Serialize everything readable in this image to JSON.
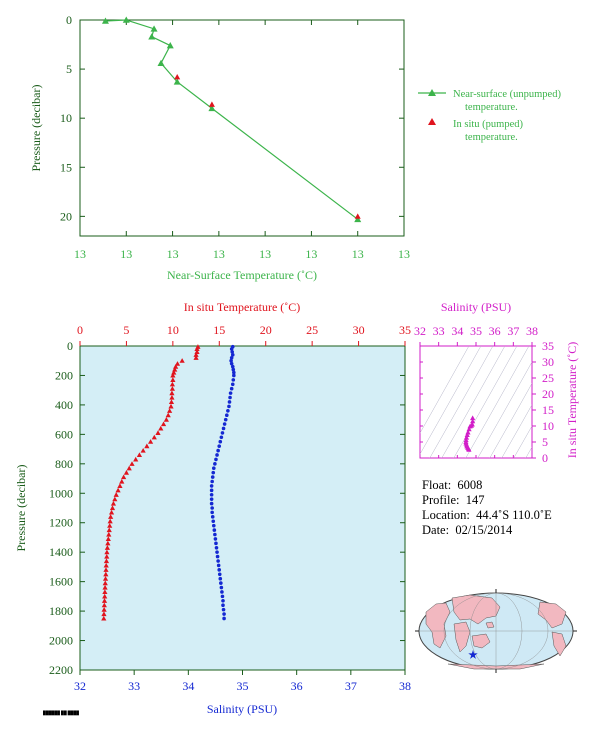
{
  "colors": {
    "green": "#3cb44b",
    "red": "#e0141e",
    "blue": "#1428d2",
    "magenta": "#d21ec8",
    "dark_green": "#1a5c1a",
    "plot_bg": "#d4eef6",
    "land": "#f2b8c0",
    "ocean": "#cfe9f5"
  },
  "chart_data": [
    {
      "type": "line",
      "xlabel": "Near-Surface Temperature (˚C)",
      "ylabel": "Pressure (decibar)",
      "x_tick_labels": [
        "13",
        "13",
        "13",
        "13",
        "13",
        "13",
        "13",
        "13"
      ],
      "y_ticks": [
        0,
        5,
        10,
        15,
        20
      ],
      "ylim": [
        0,
        22
      ],
      "y_inverted": true,
      "legend_position": "right",
      "series": [
        {
          "name": "Near-surface (unpumped) temperature.",
          "marker": "triangle",
          "color": "#3cb44b",
          "points": [
            {
              "x": 12.55,
              "y": 0.1
            },
            {
              "x": 13.0,
              "y": 0.0
            },
            {
              "x": 13.6,
              "y": 0.9
            },
            {
              "x": 13.55,
              "y": 1.7
            },
            {
              "x": 13.95,
              "y": 2.6
            },
            {
              "x": 13.75,
              "y": 4.4
            },
            {
              "x": 14.1,
              "y": 6.3
            },
            {
              "x": 14.85,
              "y": 9.0
            },
            {
              "x": 18.0,
              "y": 20.3
            }
          ]
        },
        {
          "name": "In situ (pumped) temperature.",
          "marker": "triangle",
          "color": "#e0141e",
          "points": [
            {
              "x": 14.1,
              "y": 5.8
            },
            {
              "x": 14.85,
              "y": 8.6
            },
            {
              "x": 18.0,
              "y": 20.0
            }
          ]
        }
      ]
    },
    {
      "type": "scatter",
      "xlabel_top": "In situ Temperature (˚C)",
      "xlabel_bottom": "Salinity (PSU)",
      "ylabel": "Pressure (decibar)",
      "x_top_ticks": [
        0,
        5,
        10,
        15,
        20,
        25,
        30,
        35
      ],
      "x_bottom_ticks": [
        32,
        33,
        34,
        35,
        36,
        37,
        38
      ],
      "y_ticks": [
        0,
        200,
        400,
        600,
        800,
        1000,
        1200,
        1400,
        1600,
        1800,
        2000,
        2200
      ],
      "ylim": [
        0,
        2200
      ],
      "y_inverted": true,
      "series": [
        {
          "name": "Temperature",
          "axis": "top",
          "color": "#e0141e",
          "marker": "triangle",
          "points": [
            [
              12.7,
              5
            ],
            [
              12.6,
              20
            ],
            [
              12.6,
              40
            ],
            [
              12.5,
              60
            ],
            [
              12.5,
              80
            ],
            [
              11.0,
              100
            ],
            [
              10.5,
              120
            ],
            [
              10.3,
              140
            ],
            [
              10.2,
              160
            ],
            [
              10.1,
              180
            ],
            [
              10.0,
              200
            ],
            [
              10.0,
              230
            ],
            [
              9.95,
              260
            ],
            [
              9.95,
              290
            ],
            [
              9.9,
              320
            ],
            [
              9.9,
              350
            ],
            [
              9.85,
              380
            ],
            [
              9.8,
              410
            ],
            [
              9.65,
              440
            ],
            [
              9.5,
              470
            ],
            [
              9.3,
              500
            ],
            [
              9.0,
              530
            ],
            [
              8.7,
              560
            ],
            [
              8.4,
              590
            ],
            [
              8.0,
              620
            ],
            [
              7.6,
              650
            ],
            [
              7.2,
              680
            ],
            [
              6.8,
              710
            ],
            [
              6.4,
              740
            ],
            [
              6.0,
              770
            ],
            [
              5.6,
              800
            ],
            [
              5.3,
              830
            ],
            [
              5.0,
              860
            ],
            [
              4.7,
              890
            ],
            [
              4.5,
              920
            ],
            [
              4.3,
              950
            ],
            [
              4.1,
              980
            ],
            [
              3.9,
              1010
            ],
            [
              3.75,
              1040
            ],
            [
              3.6,
              1070
            ],
            [
              3.5,
              1100
            ],
            [
              3.4,
              1130
            ],
            [
              3.3,
              1160
            ],
            [
              3.25,
              1190
            ],
            [
              3.2,
              1220
            ],
            [
              3.15,
              1250
            ],
            [
              3.1,
              1280
            ],
            [
              3.05,
              1310
            ],
            [
              3.0,
              1340
            ],
            [
              2.95,
              1370
            ],
            [
              2.9,
              1400
            ],
            [
              2.88,
              1430
            ],
            [
              2.85,
              1460
            ],
            [
              2.82,
              1490
            ],
            [
              2.8,
              1520
            ],
            [
              2.78,
              1550
            ],
            [
              2.75,
              1580
            ],
            [
              2.72,
              1610
            ],
            [
              2.7,
              1640
            ],
            [
              2.68,
              1670
            ],
            [
              2.66,
              1700
            ],
            [
              2.64,
              1730
            ],
            [
              2.62,
              1760
            ],
            [
              2.6,
              1790
            ],
            [
              2.58,
              1820
            ],
            [
              2.56,
              1850
            ]
          ]
        },
        {
          "name": "Salinity",
          "axis": "bottom",
          "color": "#1428d2",
          "marker": "circle",
          "points": [
            [
              34.82,
              5
            ],
            [
              34.8,
              20
            ],
            [
              34.81,
              40
            ],
            [
              34.82,
              60
            ],
            [
              34.8,
              80
            ],
            [
              34.79,
              100
            ],
            [
              34.8,
              120
            ],
            [
              34.82,
              140
            ],
            [
              34.83,
              160
            ],
            [
              34.84,
              180
            ],
            [
              34.84,
              200
            ],
            [
              34.83,
              230
            ],
            [
              34.82,
              260
            ],
            [
              34.8,
              290
            ],
            [
              34.78,
              320
            ],
            [
              34.77,
              350
            ],
            [
              34.76,
              380
            ],
            [
              34.75,
              410
            ],
            [
              34.73,
              440
            ],
            [
              34.71,
              470
            ],
            [
              34.69,
              500
            ],
            [
              34.67,
              530
            ],
            [
              34.65,
              560
            ],
            [
              34.63,
              590
            ],
            [
              34.61,
              620
            ],
            [
              34.59,
              650
            ],
            [
              34.57,
              680
            ],
            [
              34.55,
              710
            ],
            [
              34.53,
              740
            ],
            [
              34.51,
              770
            ],
            [
              34.49,
              800
            ],
            [
              34.47,
              830
            ],
            [
              34.46,
              860
            ],
            [
              34.45,
              890
            ],
            [
              34.44,
              920
            ],
            [
              34.43,
              950
            ],
            [
              34.43,
              980
            ],
            [
              34.43,
              1010
            ],
            [
              34.43,
              1040
            ],
            [
              34.43,
              1070
            ],
            [
              34.44,
              1100
            ],
            [
              34.44,
              1130
            ],
            [
              34.45,
              1160
            ],
            [
              34.46,
              1190
            ],
            [
              34.47,
              1220
            ],
            [
              34.48,
              1250
            ],
            [
              34.49,
              1280
            ],
            [
              34.5,
              1310
            ],
            [
              34.51,
              1340
            ],
            [
              34.52,
              1370
            ],
            [
              34.53,
              1400
            ],
            [
              34.54,
              1430
            ],
            [
              34.55,
              1460
            ],
            [
              34.56,
              1490
            ],
            [
              34.57,
              1520
            ],
            [
              34.58,
              1550
            ],
            [
              34.59,
              1580
            ],
            [
              34.6,
              1610
            ],
            [
              34.61,
              1640
            ],
            [
              34.62,
              1670
            ],
            [
              34.63,
              1700
            ],
            [
              34.64,
              1730
            ],
            [
              34.64,
              1760
            ],
            [
              34.65,
              1790
            ],
            [
              34.66,
              1820
            ],
            [
              34.66,
              1850
            ]
          ]
        }
      ]
    },
    {
      "type": "scatter",
      "xlabel": "Salinity (PSU)",
      "ylabel": "In situ Temperature (˚C)",
      "x_ticks": [
        32,
        33,
        34,
        35,
        36,
        37,
        38
      ],
      "y_ticks": [
        0,
        5,
        10,
        15,
        20,
        25,
        30,
        35
      ],
      "xlim": [
        32,
        38
      ],
      "ylim": [
        0,
        35
      ],
      "series": [
        {
          "name": "T-S",
          "color": "#d21ec8",
          "marker": "triangle",
          "points": [
            [
              34.62,
              2.6
            ],
            [
              34.6,
              2.9
            ],
            [
              34.56,
              3.2
            ],
            [
              34.52,
              3.6
            ],
            [
              34.5,
              4.0
            ],
            [
              34.47,
              4.5
            ],
            [
              34.46,
              5.0
            ],
            [
              34.47,
              5.6
            ],
            [
              34.49,
              6.4
            ],
            [
              34.53,
              7.2
            ],
            [
              34.57,
              8.0
            ],
            [
              34.63,
              9.0
            ],
            [
              34.68,
              9.9
            ],
            [
              34.75,
              10.1
            ],
            [
              34.8,
              10.5
            ],
            [
              34.82,
              11.5
            ],
            [
              34.82,
              12.5
            ]
          ]
        }
      ]
    }
  ],
  "legend": {
    "item1_line1": "Near-surface (unpumped)",
    "item1_line2": "temperature.",
    "item2_line1": "In situ (pumped)",
    "item2_line2": "temperature."
  },
  "info": {
    "float_label": "Float:",
    "float_value": "6008",
    "profile_label": "Profile:",
    "profile_value": "147",
    "location_label": "Location:",
    "location_value": "44.4˚S  110.0˚E",
    "date_label": "Date:",
    "date_value": "02/15/2014"
  },
  "footer_text": "██████ ██ ████"
}
